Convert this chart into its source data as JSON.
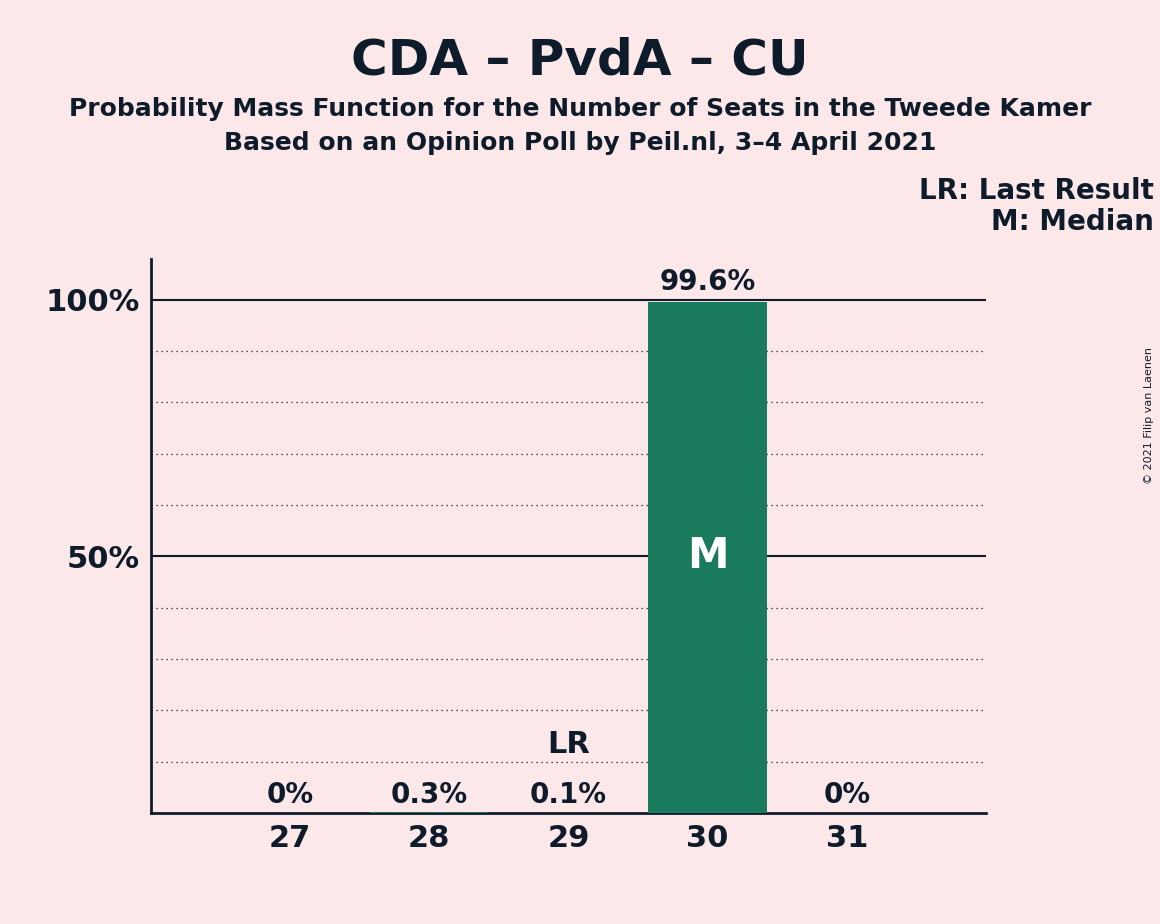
{
  "title": "CDA – PvdA – CU",
  "subtitle1": "Probability Mass Function for the Number of Seats in the Tweede Kamer",
  "subtitle2": "Based on an Opinion Poll by Peil.nl, 3–4 April 2021",
  "copyright": "© 2021 Filip van Laenen",
  "background_color": "#fce8e8",
  "bar_color": "#1a7a5e",
  "categories": [
    27,
    28,
    29,
    30,
    31
  ],
  "values": [
    0.0,
    0.003,
    0.001,
    0.996,
    0.0
  ],
  "bar_labels": [
    "0%",
    "0.3%",
    "0.1%",
    "99.6%",
    "0%"
  ],
  "lr_seat": 29,
  "lr_label": "LR",
  "median_seat": 30,
  "median_label": "M",
  "legend_lr": "LR: Last Result",
  "legend_m": "M: Median",
  "title_fontsize": 36,
  "subtitle_fontsize": 18,
  "tick_fontsize": 22,
  "bar_label_fontsize": 20,
  "lr_annotation_fontsize": 22,
  "m_annotation_fontsize": 30,
  "legend_fontsize": 20,
  "copyright_fontsize": 8,
  "ylim": [
    0,
    1.08
  ],
  "yticks": [
    0.0,
    0.1,
    0.2,
    0.3,
    0.4,
    0.5,
    0.6,
    0.7,
    0.8,
    0.9,
    1.0
  ],
  "ytick_labels": [
    "",
    "",
    "",
    "",
    "",
    "50%",
    "",
    "",
    "",
    "",
    "100%"
  ],
  "solid_line_yticks": [
    0.5,
    1.0
  ],
  "dotted_line_yticks": [
    0.1,
    0.2,
    0.3,
    0.4,
    0.6,
    0.7,
    0.8,
    0.9
  ],
  "text_color": "#0d1b2a",
  "spine_color": "#0d1b2a",
  "bar_width": 0.85
}
